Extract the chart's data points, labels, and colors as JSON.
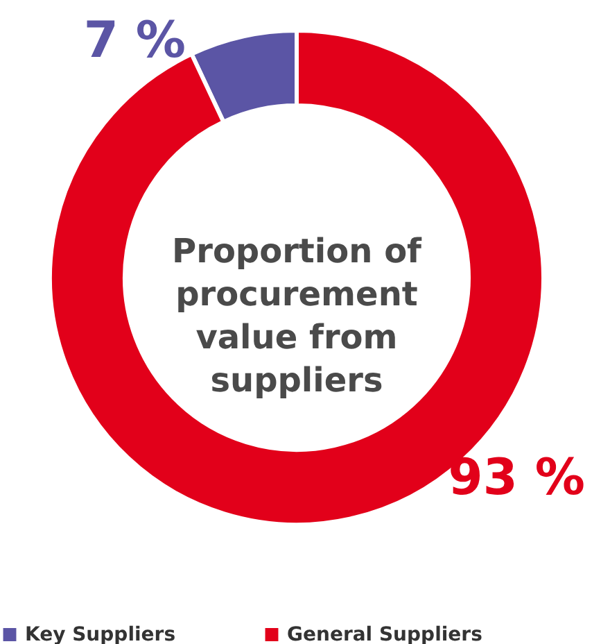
{
  "chart_data": {
    "type": "donut",
    "title": "Proportion of procurement value from suppliers",
    "categories": [
      "Key Suppliers",
      "General Suppliers"
    ],
    "values": [
      7,
      93
    ],
    "colors": [
      "#5b55a5",
      "#e2001a"
    ],
    "value_labels": [
      "7 %",
      "93 %"
    ],
    "legend": "bottom"
  }
}
